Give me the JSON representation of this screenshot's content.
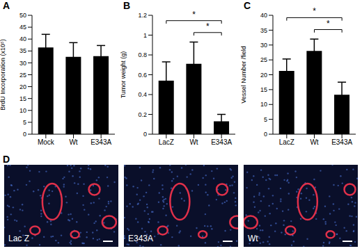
{
  "chart_data": [
    {
      "type": "bar",
      "title": "A",
      "y_label": "BrdU Incorporation (x10⁵)",
      "categories": [
        "Mock",
        "Wt",
        "E343A"
      ],
      "values": [
        36.5,
        32.5,
        32.8
      ],
      "errors": [
        5.5,
        6,
        4.5
      ],
      "color": "#000000",
      "ylim": [
        0,
        50
      ],
      "yticks": [
        0,
        5,
        10,
        15,
        20,
        25,
        30,
        35,
        40,
        45,
        50
      ],
      "annotations": []
    },
    {
      "type": "bar",
      "title": "B",
      "y_label": "Tumor weight (g)",
      "categories": [
        "LacZ",
        "Wt",
        "E343A"
      ],
      "values": [
        0.54,
        0.71,
        0.13
      ],
      "errors": [
        0.19,
        0.22,
        0.07
      ],
      "color": "#000000",
      "ylim": [
        0,
        1.2
      ],
      "yticks": [
        0,
        0.2,
        0.4,
        0.6,
        0.8,
        1,
        1.2
      ],
      "annotations": [
        {
          "from": "Wt",
          "to": "E343A",
          "label": "*"
        },
        {
          "from": "LacZ",
          "to": "E343A",
          "label": "*"
        }
      ]
    },
    {
      "type": "bar",
      "title": "C",
      "y_label": "Vessel Number /field",
      "categories": [
        "LacZ",
        "Wt",
        "E343A"
      ],
      "values": [
        21.3,
        28,
        13.3
      ],
      "errors": [
        4,
        4,
        4.2
      ],
      "color": "#000000",
      "ylim": [
        0,
        40
      ],
      "yticks": [
        0,
        5,
        10,
        15,
        20,
        25,
        30,
        35,
        40
      ],
      "annotations": [
        {
          "from": "Wt",
          "to": "E343A",
          "label": "*"
        },
        {
          "from": "LacZ",
          "to": "E343A",
          "label": "*"
        }
      ]
    }
  ],
  "images": {
    "title": "D",
    "panels": [
      "Lac Z",
      "E343A",
      "Wt"
    ]
  }
}
